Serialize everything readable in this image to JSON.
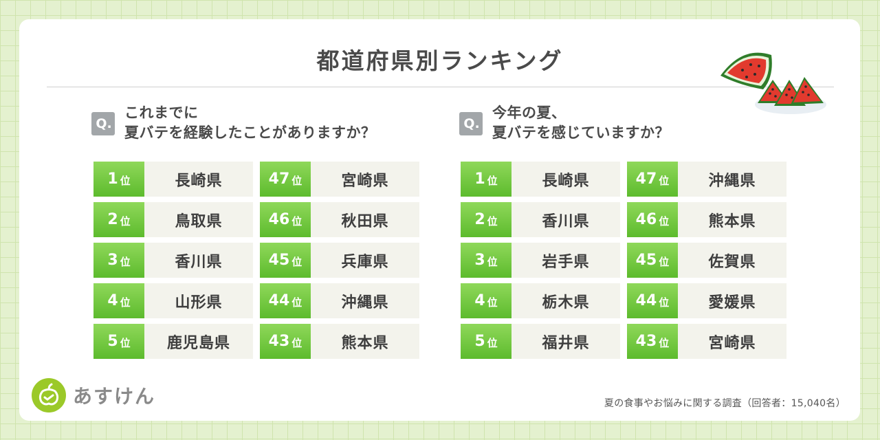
{
  "title": "都道府県別ランキング",
  "rank_suffix": "位",
  "q_badge": "Q.",
  "survey1": {
    "question_line1": "これまでに",
    "question_line2": "夏バテを経験したことがありますか？",
    "top": [
      {
        "rank": "1",
        "pref": "長崎県"
      },
      {
        "rank": "2",
        "pref": "鳥取県"
      },
      {
        "rank": "3",
        "pref": "香川県"
      },
      {
        "rank": "4",
        "pref": "山形県"
      },
      {
        "rank": "5",
        "pref": "鹿児島県"
      }
    ],
    "bottom": [
      {
        "rank": "47",
        "pref": "宮崎県"
      },
      {
        "rank": "46",
        "pref": "秋田県"
      },
      {
        "rank": "45",
        "pref": "兵庫県"
      },
      {
        "rank": "44",
        "pref": "沖縄県"
      },
      {
        "rank": "43",
        "pref": "熊本県"
      }
    ]
  },
  "survey2": {
    "question_line1": "今年の夏、",
    "question_line2": "夏バテを感じていますか？",
    "top": [
      {
        "rank": "1",
        "pref": "長崎県"
      },
      {
        "rank": "2",
        "pref": "香川県"
      },
      {
        "rank": "3",
        "pref": "岩手県"
      },
      {
        "rank": "4",
        "pref": "栃木県"
      },
      {
        "rank": "5",
        "pref": "福井県"
      }
    ],
    "bottom": [
      {
        "rank": "47",
        "pref": "沖縄県"
      },
      {
        "rank": "46",
        "pref": "熊本県"
      },
      {
        "rank": "45",
        "pref": "佐賀県"
      },
      {
        "rank": "44",
        "pref": "愛媛県"
      },
      {
        "rank": "43",
        "pref": "宮崎県"
      }
    ]
  },
  "logo_text": "あすけん",
  "footnote": "夏の食事やお悩みに関する調査（回答者：15,040名）",
  "colors": {
    "rank_green": "#6cc63a",
    "background": "#e4f1cf",
    "logo_green": "#9bc929",
    "cell_bg": "#f3f3ec"
  },
  "icons": [
    "watermelon-icon",
    "apple-logo-icon"
  ]
}
